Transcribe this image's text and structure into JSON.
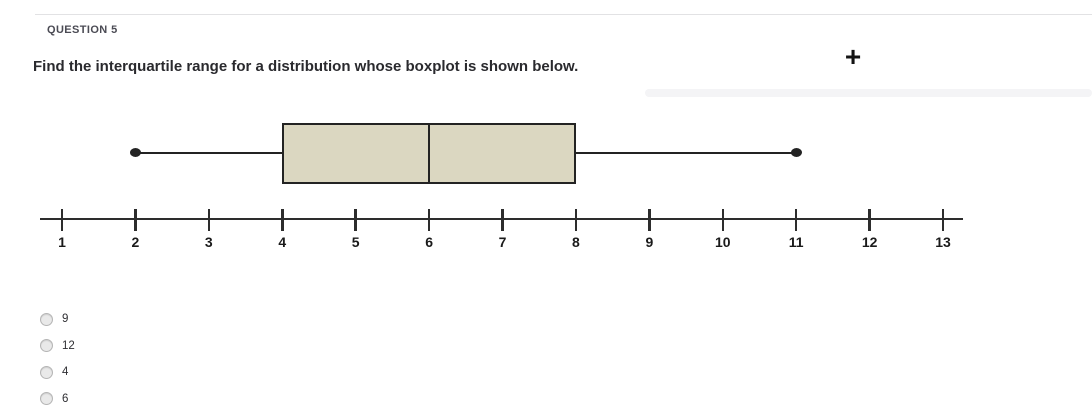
{
  "header": {
    "question_label": "QUESTION 5"
  },
  "question": {
    "text": "Find the interquartile range for a distribution whose boxplot is shown below."
  },
  "toolbar": {
    "add_icon_glyph": "+"
  },
  "chart_data": {
    "type": "boxplot",
    "title": "",
    "min": 2,
    "q1": 4,
    "median": 6,
    "q3": 8,
    "max": 11,
    "iqr": 4,
    "axis": {
      "min": 1,
      "max": 13,
      "ticks": [
        1,
        2,
        3,
        4,
        5,
        6,
        7,
        8,
        9,
        10,
        11,
        12,
        13
      ]
    },
    "colors": {
      "box_fill": "#dbd7c1",
      "line": "#232323"
    }
  },
  "options": [
    {
      "label": "9",
      "selected": false
    },
    {
      "label": "12",
      "selected": false
    },
    {
      "label": "4",
      "selected": false
    },
    {
      "label": "6",
      "selected": false
    }
  ]
}
